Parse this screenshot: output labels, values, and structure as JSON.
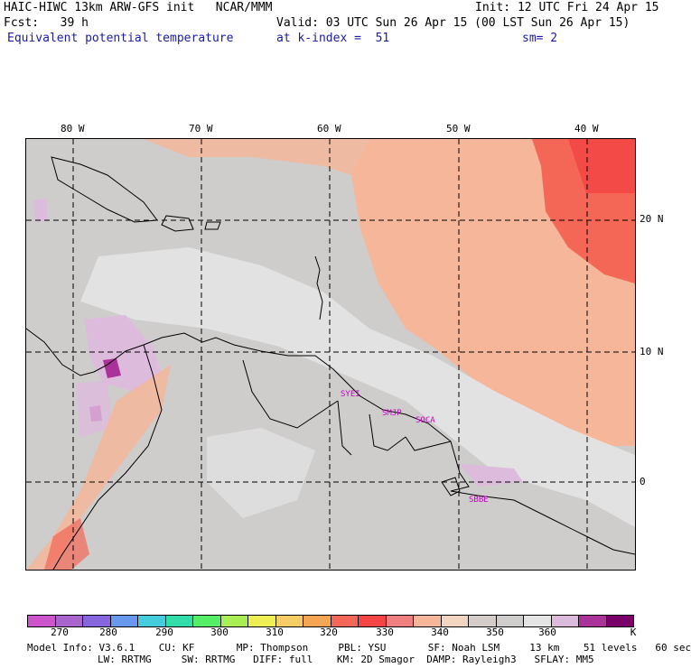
{
  "header": {
    "model_line": "HAIC-HIWC 13km ARW-GFS init   NCAR/MMM",
    "init_line": "Init: 12 UTC Fri 24 Apr 15",
    "fcst_line": "Fcst:   39 h",
    "valid_line": "Valid: 03 UTC Sun 26 Apr 15 (00 LST Sun 26 Apr 15)",
    "field_name": "Equivalent potential temperature",
    "level_line": "at k-index =  51",
    "smoothing_line": "sm= 2"
  },
  "map": {
    "longitude_labels": [
      "80 W",
      "70 W",
      "60 W",
      "50 W",
      "40 W"
    ],
    "latitude_labels": [
      "20 N",
      "10 N",
      "0"
    ],
    "station_labels": [
      "SYEI",
      "SMJP",
      "SOCA",
      "SBBE"
    ]
  },
  "colorbar": {
    "colors": [
      "#cc55cc",
      "#aa66cc",
      "#8866dd",
      "#6699ee",
      "#44ccdd",
      "#33ddaa",
      "#55ee66",
      "#aaee55",
      "#eeee55",
      "#f6cc66",
      "#f6a655",
      "#f46655",
      "#f44444",
      "#f08080",
      "#f5b69a",
      "#f2d5c0",
      "#d4ccc8",
      "#cfcccc",
      "#e4e4e4",
      "#ddbbdd",
      "#aa3399",
      "#7a006a"
    ],
    "tick_labels": [
      "270",
      "280",
      "290",
      "300",
      "310",
      "320",
      "330",
      "340",
      "350",
      "360",
      "K"
    ]
  },
  "footer": {
    "line1": "Model Info: V3.6.1    CU: KF       MP: Thompson     PBL: YSU       SF: Noah LSM     13 km    51 levels   60 sec",
    "line2": "LW: RRTMG     SW: RRTMG   DIFF: full    KM: 2D Smagor  DAMP: Rayleigh3   SFLAY: MM5"
  }
}
